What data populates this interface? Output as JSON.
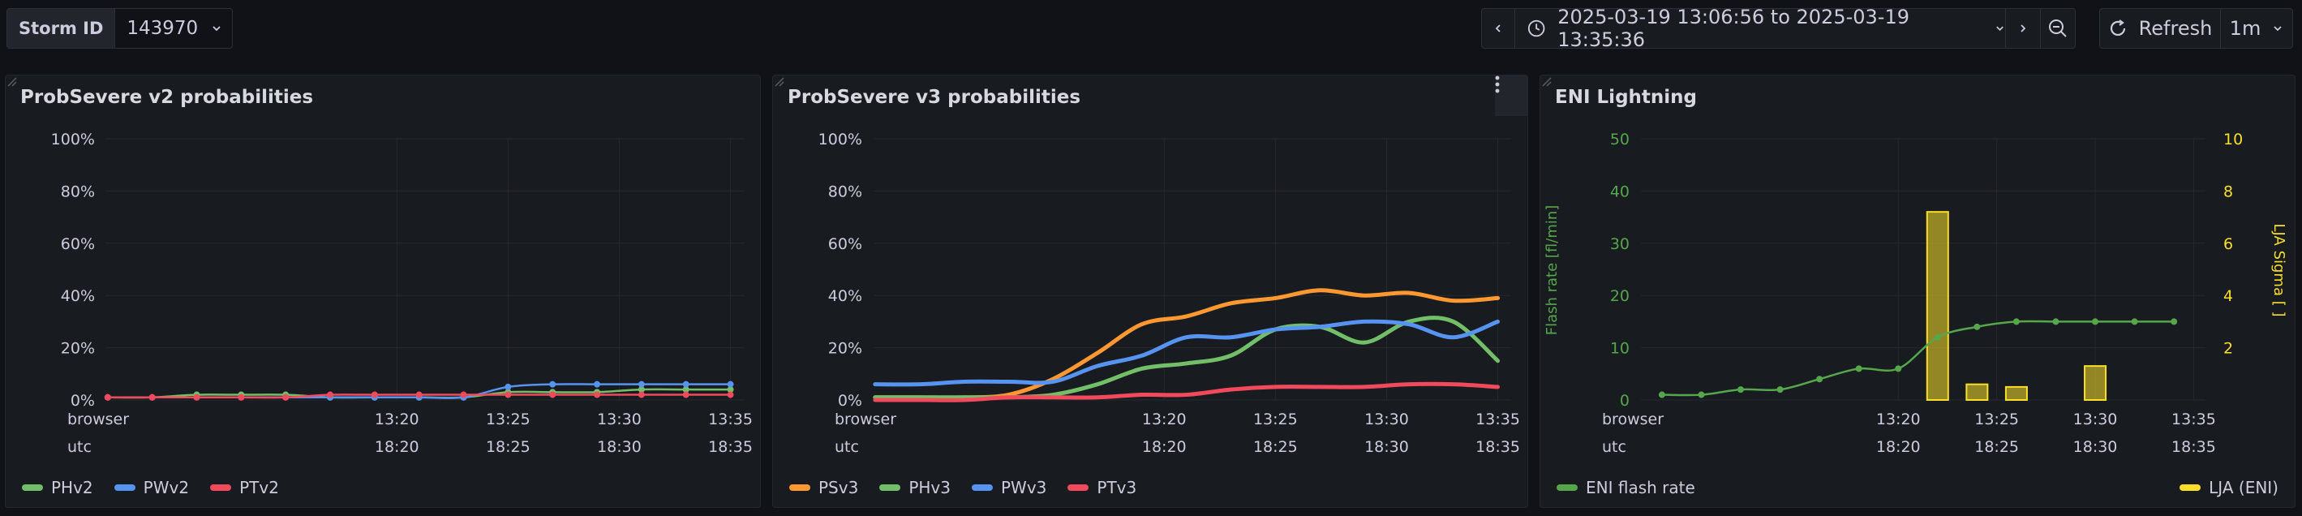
{
  "variables": {
    "storm_label": "Storm ID",
    "storm_value": "143970"
  },
  "timepicker": {
    "range_text": "2025-03-19 13:06:56 to 2025-03-19 13:35:36"
  },
  "refresh": {
    "label": "Refresh",
    "interval": "1m"
  },
  "colors": {
    "green": "#73bf69",
    "blue": "#5794f2",
    "red": "#f2495c",
    "orange": "#ff9830",
    "olive": "#56a64b",
    "yellow": "#fade2a"
  },
  "x_axis": {
    "row1_label": "browser",
    "row2_label": "utc",
    "times": [
      "13:20",
      "13:25",
      "13:30",
      "13:35"
    ],
    "utc_times": [
      "18:20",
      "18:25",
      "18:30",
      "18:35"
    ]
  },
  "panels": [
    {
      "title": "ProbSevere v2 probabilities",
      "legend": [
        "PHv2",
        "PWv2",
        "PTv2"
      ]
    },
    {
      "title": "ProbSevere v3 probabilities",
      "legend": [
        "PSv3",
        "PHv3",
        "PWv3",
        "PTv3"
      ]
    },
    {
      "title": "ENI Lightning",
      "legend_left": "ENI flash rate",
      "legend_right": "LJA (ENI)",
      "y_left_label": "Flash rate [fl/min]",
      "y_right_label": "LJA Sigma [ ]"
    }
  ],
  "chart_data": [
    {
      "type": "line",
      "title": "ProbSevere v2 probabilities",
      "x_unit": "minutes",
      "x": [
        "13:07",
        "13:09",
        "13:11",
        "13:13",
        "13:15",
        "13:17",
        "13:19",
        "13:21",
        "13:23",
        "13:25",
        "13:27",
        "13:29",
        "13:31",
        "13:33",
        "13:35"
      ],
      "ylim": [
        0,
        100
      ],
      "yticks": [
        "0%",
        "20%",
        "40%",
        "60%",
        "80%",
        "100%"
      ],
      "series": [
        {
          "name": "PHv2",
          "color": "#73bf69",
          "values": [
            1,
            1,
            2,
            2,
            2,
            1,
            1,
            1,
            1,
            3,
            3,
            3,
            4,
            4,
            4
          ]
        },
        {
          "name": "PWv2",
          "color": "#5794f2",
          "values": [
            1,
            1,
            1,
            1,
            1,
            1,
            1,
            1,
            1,
            5,
            6,
            6,
            6,
            6,
            6
          ]
        },
        {
          "name": "PTv2",
          "color": "#f2495c",
          "values": [
            1,
            1,
            1,
            1,
            1,
            2,
            2,
            2,
            2,
            2,
            2,
            2,
            2,
            2,
            2
          ]
        }
      ]
    },
    {
      "type": "line",
      "title": "ProbSevere v3 probabilities",
      "x": [
        "13:07",
        "13:09",
        "13:11",
        "13:13",
        "13:15",
        "13:17",
        "13:19",
        "13:21",
        "13:23",
        "13:25",
        "13:27",
        "13:29",
        "13:31",
        "13:33",
        "13:35"
      ],
      "ylim": [
        0,
        100
      ],
      "yticks": [
        "0%",
        "20%",
        "40%",
        "60%",
        "80%",
        "100%"
      ],
      "series": [
        {
          "name": "PSv3",
          "color": "#ff9830",
          "values": [
            1,
            1,
            1,
            2,
            8,
            18,
            29,
            32,
            37,
            39,
            42,
            40,
            41,
            38,
            39
          ]
        },
        {
          "name": "PHv3",
          "color": "#73bf69",
          "values": [
            1,
            1,
            1,
            1,
            2,
            6,
            12,
            14,
            17,
            27,
            28,
            22,
            30,
            30,
            15
          ]
        },
        {
          "name": "PWv3",
          "color": "#5794f2",
          "values": [
            6,
            6,
            7,
            7,
            7,
            13,
            17,
            24,
            24,
            27,
            28,
            30,
            29,
            24,
            30
          ]
        },
        {
          "name": "PTv3",
          "color": "#f2495c",
          "values": [
            0,
            0,
            0,
            1,
            1,
            1,
            2,
            2,
            4,
            5,
            5,
            5,
            6,
            6,
            5
          ]
        }
      ]
    },
    {
      "type": "line",
      "title": "ENI Lightning",
      "x": [
        "13:08",
        "13:10",
        "13:12",
        "13:14",
        "13:16",
        "13:18",
        "13:20",
        "13:22",
        "13:24",
        "13:26",
        "13:28",
        "13:30",
        "13:32",
        "13:34"
      ],
      "ylim": [
        0,
        50
      ],
      "yticks": [
        "0",
        "10",
        "20",
        "30",
        "40",
        "50"
      ],
      "y2lim": [
        0,
        10
      ],
      "y2ticks": [
        "2",
        "4",
        "6",
        "8",
        "10"
      ],
      "series": [
        {
          "name": "ENI flash rate",
          "color": "#56a64b",
          "values": [
            1,
            1,
            2,
            2,
            4,
            6,
            6,
            12,
            14,
            15,
            15,
            15,
            15,
            15
          ]
        },
        {
          "name": "LJA (ENI)",
          "color": "#fade2a",
          "type": "bar",
          "axis": "right",
          "x": [
            "13:22",
            "13:24",
            "13:26",
            "13:30"
          ],
          "values": [
            7.2,
            0.6,
            0.5,
            1.3
          ]
        }
      ]
    }
  ]
}
